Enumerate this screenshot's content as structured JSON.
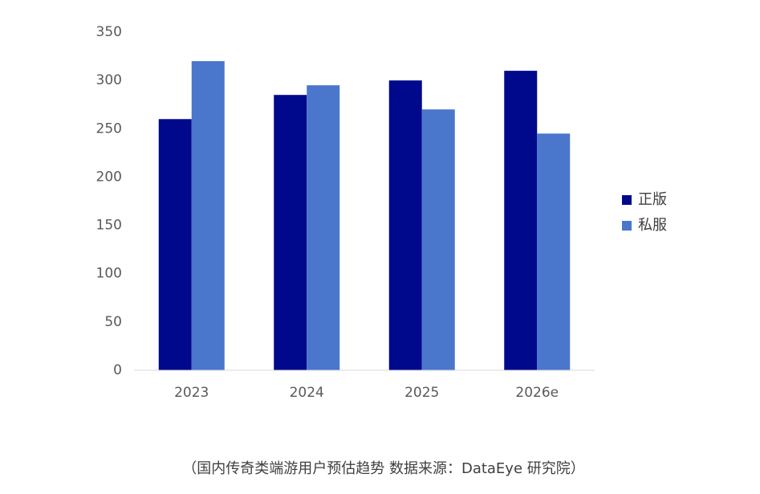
{
  "chart_data": {
    "type": "bar",
    "categories": [
      "2023",
      "2024",
      "2025",
      "2026e"
    ],
    "series": [
      {
        "name": "正版",
        "color": "#00098c",
        "values": [
          260,
          285,
          300,
          310
        ]
      },
      {
        "name": "私服",
        "color": "#4a76cc",
        "values": [
          320,
          295,
          270,
          245
        ]
      }
    ],
    "ylim": [
      0,
      350
    ],
    "yticks": [
      0,
      50,
      100,
      150,
      200,
      250,
      300,
      350
    ],
    "grid": false,
    "legend": "right",
    "caption": "（国内传奇类端游用户预估趋势 数据来源：DataEye 研究院）"
  }
}
